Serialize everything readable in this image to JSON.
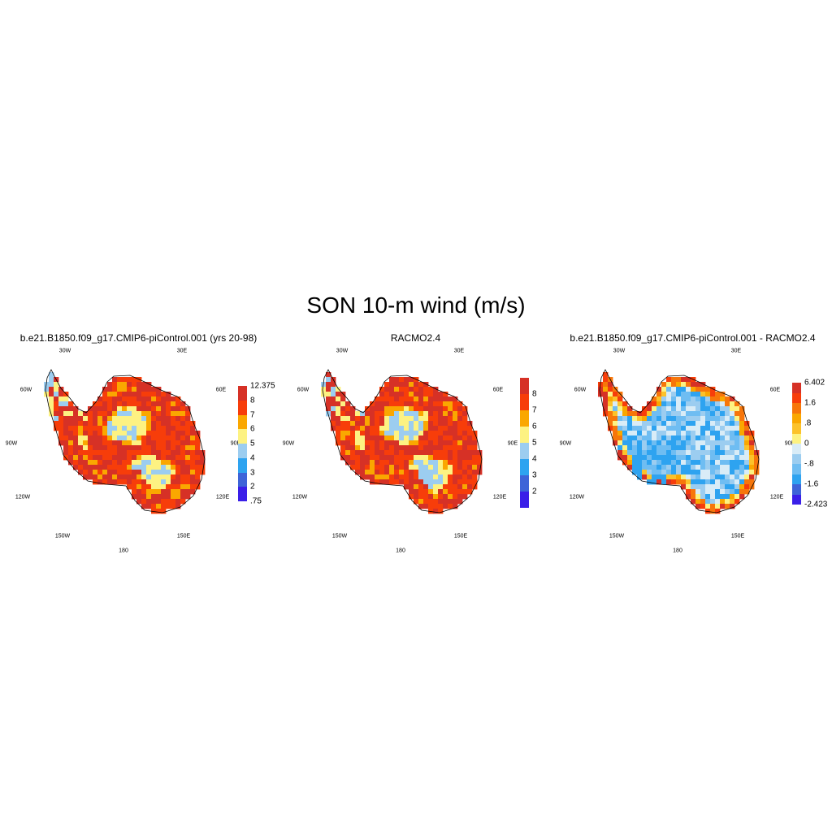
{
  "title": "SON 10-m wind (m/s)",
  "lon_labels": [
    "30W",
    "30E",
    "60W",
    "60E",
    "90W",
    "90E",
    "120W",
    "120E",
    "150W",
    "150E",
    "180"
  ],
  "panels": [
    {
      "title": "b.e21.B1850.f09_g17.CMIP6-piControl.001 (yrs 20-98)",
      "colorbar": {
        "colors": [
          "#3a1fe8",
          "#3e64d8",
          "#2ea3f0",
          "#9ccdf0",
          "#fdf282",
          "#faa700",
          "#f73d0a",
          "#d63126"
        ],
        "labels": [
          ".75",
          "2",
          "3",
          "4",
          "5",
          "6",
          "7",
          "8",
          "12.375"
        ],
        "label_style": "edges"
      },
      "map_style": "high_wind"
    },
    {
      "title": "RACMO2.4",
      "colorbar": {
        "colors": [
          "#3a1fe8",
          "#3e64d8",
          "#2ea3f0",
          "#9ccdf0",
          "#fdf282",
          "#faa700",
          "#f73d0a",
          "#d63126"
        ],
        "labels": [
          "2",
          "3",
          "4",
          "5",
          "6",
          "7",
          "8"
        ],
        "label_style": "interior"
      },
      "map_style": "high_wind"
    },
    {
      "title": "b.e21.B1850.f09_g17.CMIP6-piControl.001 - RACMO2.4",
      "colorbar": {
        "colors": [
          "#3a1fe8",
          "#3e64d8",
          "#2ea3f0",
          "#6fbdf2",
          "#9ccdf0",
          "#d9ecf7",
          "#fdf282",
          "#fcc22a",
          "#faa700",
          "#f7760a",
          "#f73d0a",
          "#d63126"
        ],
        "labels": [
          "-2.423",
          "-1.6",
          "-.8",
          "0",
          ".8",
          "1.6",
          "6.402"
        ],
        "label_style": "diff"
      },
      "map_style": "difference"
    }
  ]
}
